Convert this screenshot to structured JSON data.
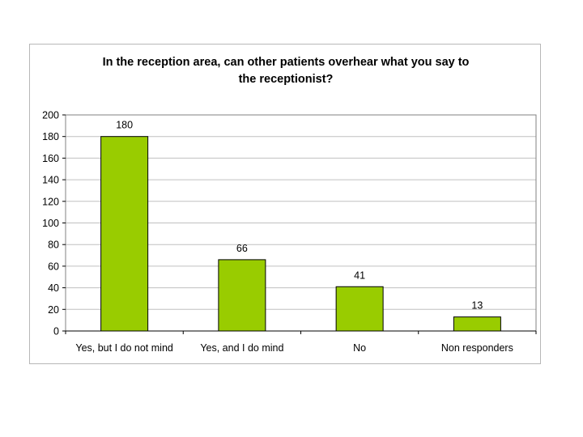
{
  "chart_data": {
    "type": "bar",
    "title": [
      "In the reception area, can other patients overhear what you say to",
      "the receptionist?"
    ],
    "categories": [
      "Yes, but I do not mind",
      "Yes, and I do mind",
      "No",
      "Non responders"
    ],
    "values": [
      180,
      66,
      41,
      13
    ],
    "data_labels": [
      "180",
      "66",
      "41",
      "13"
    ],
    "ylim": [
      0,
      200
    ],
    "yticks": [
      0,
      20,
      40,
      60,
      80,
      100,
      120,
      140,
      160,
      180,
      200
    ],
    "grid": true,
    "legend": "none",
    "colors": {
      "bar_fill": "#99cc00",
      "bar_stroke": "#000000",
      "grid": "#c0c0c0",
      "plot_border": "#808080"
    }
  }
}
